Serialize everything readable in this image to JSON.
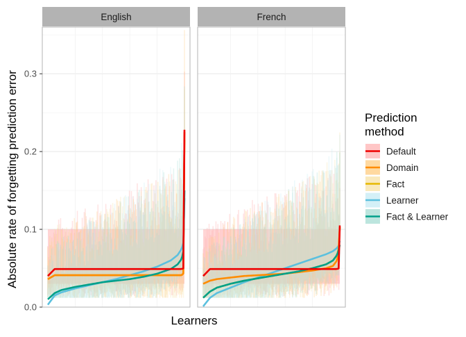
{
  "chart_data": {
    "type": "line",
    "facets": [
      "English",
      "French"
    ],
    "xlabel": "Learners",
    "ylabel": "Absolute rate of forgetting prediction error",
    "ylim": [
      0,
      0.36
    ],
    "yticks": [
      0.0,
      0.1,
      0.2,
      0.3
    ],
    "ytick_labels": [
      "0.0",
      "0.1",
      "0.2",
      "0.3"
    ],
    "grid": true,
    "legend": {
      "position": "right",
      "title": [
        "Prediction",
        "method"
      ]
    },
    "x": [
      0,
      0.05,
      0.1,
      0.2,
      0.3,
      0.4,
      0.5,
      0.6,
      0.7,
      0.8,
      0.9,
      0.95,
      0.98,
      0.995,
      1.0
    ],
    "series": [
      {
        "name": "Default",
        "color": "#ee0000",
        "band_color": "#ffb3b3",
        "band_upper": [
          0.1,
          0.1,
          0.1,
          0.1,
          0.1,
          0.1,
          0.1,
          0.1,
          0.1,
          0.1,
          0.1,
          0.1,
          0.1,
          0.1,
          0.1
        ],
        "band_lower": [
          0.03,
          0.03,
          0.03,
          0.03,
          0.03,
          0.03,
          0.03,
          0.03,
          0.03,
          0.03,
          0.03,
          0.03,
          0.03,
          0.03,
          0.03
        ],
        "facets": {
          "English": [
            0.04,
            0.049,
            0.049,
            0.049,
            0.049,
            0.049,
            0.049,
            0.049,
            0.049,
            0.049,
            0.049,
            0.049,
            0.049,
            0.05,
            0.228
          ],
          "French": [
            0.04,
            0.049,
            0.049,
            0.049,
            0.049,
            0.049,
            0.049,
            0.049,
            0.049,
            0.049,
            0.049,
            0.049,
            0.049,
            0.05,
            0.105
          ]
        }
      },
      {
        "name": "Domain",
        "color": "#ff8c00",
        "band_color": "#ffcc80",
        "facets": {
          "English": [
            0.036,
            0.041,
            0.041,
            0.041,
            0.041,
            0.041,
            0.041,
            0.041,
            0.041,
            0.041,
            0.041,
            0.041,
            0.041,
            0.044,
            0.225
          ],
          "French": [
            0.03,
            0.034,
            0.036,
            0.038,
            0.04,
            0.041,
            0.042,
            0.043,
            0.045,
            0.047,
            0.05,
            0.053,
            0.06,
            0.075,
            0.103
          ]
        }
      },
      {
        "name": "Fact",
        "color": "#e6b800",
        "band_color": "#f7e2a6",
        "facets": {
          "English": [
            0.036,
            0.041,
            0.041,
            0.041,
            0.041,
            0.041,
            0.041,
            0.041,
            0.041,
            0.041,
            0.041,
            0.041,
            0.041,
            0.044,
            0.215
          ],
          "French": [
            0.012,
            0.02,
            0.025,
            0.03,
            0.034,
            0.037,
            0.04,
            0.043,
            0.046,
            0.05,
            0.055,
            0.06,
            0.067,
            0.078,
            0.103
          ]
        }
      },
      {
        "name": "Learner",
        "color": "#5bc0de",
        "band_color": "#c6ebf4",
        "facets": {
          "English": [
            0.003,
            0.015,
            0.019,
            0.024,
            0.028,
            0.032,
            0.036,
            0.041,
            0.046,
            0.052,
            0.06,
            0.067,
            0.075,
            0.085,
            0.14
          ],
          "French": [
            0.001,
            0.012,
            0.018,
            0.025,
            0.032,
            0.038,
            0.044,
            0.05,
            0.056,
            0.062,
            0.068,
            0.072,
            0.076,
            0.08,
            0.085
          ]
        }
      },
      {
        "name": "Fact & Learner",
        "color": "#00a08a",
        "band_color": "#a6dcd3",
        "facets": {
          "English": [
            0.01,
            0.018,
            0.022,
            0.026,
            0.029,
            0.032,
            0.034,
            0.036,
            0.039,
            0.043,
            0.049,
            0.055,
            0.062,
            0.075,
            0.15
          ],
          "French": [
            0.012,
            0.02,
            0.025,
            0.03,
            0.034,
            0.037,
            0.04,
            0.043,
            0.046,
            0.05,
            0.055,
            0.06,
            0.067,
            0.075,
            0.08
          ]
        }
      }
    ]
  }
}
